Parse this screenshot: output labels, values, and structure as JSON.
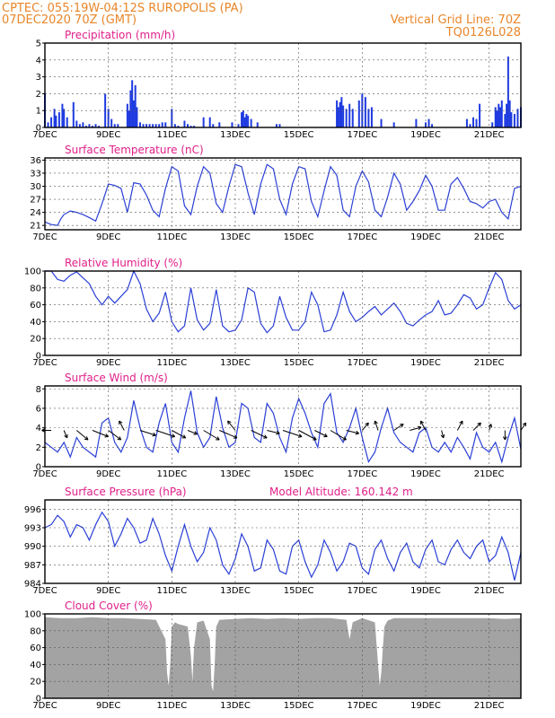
{
  "header": {
    "left_line1": "CPTEC:   055:19W-04:12S   RUROPOLIS (PA)",
    "left_line2": "07DEC2020 70Z (GMT)",
    "right_line1": "Vertical Grid Line: 70Z",
    "right_line2": "TQ0126L028"
  },
  "x_ticks": [
    "7DEC",
    "9DEC",
    "11DEC",
    "13DEC",
    "15DEC",
    "17DEC",
    "19DEC",
    "21DEC"
  ],
  "colors": {
    "header": "#e8862a",
    "title": "#e0208a",
    "series": "#2a3fd6",
    "bars": "#1f3be0",
    "cloud": "#a3a3a3"
  },
  "chart_data": [
    {
      "type": "bar",
      "title": "Precipitation (mm/h)",
      "ylim": [
        0,
        5
      ],
      "yticks": [
        0,
        1,
        2,
        3,
        4,
        5
      ],
      "xlim": [
        7,
        22
      ],
      "note": "day-of-December positions",
      "x": [
        7.0,
        7.1,
        7.2,
        7.3,
        7.35,
        7.45,
        7.55,
        7.6,
        7.7,
        7.9,
        8.0,
        8.1,
        8.2,
        8.3,
        8.4,
        8.5,
        8.6,
        8.7,
        8.9,
        9.0,
        9.1,
        9.2,
        9.3,
        9.6,
        9.65,
        9.7,
        9.75,
        9.8,
        9.85,
        9.9,
        10.0,
        10.1,
        10.2,
        10.3,
        10.4,
        10.5,
        10.6,
        10.7,
        10.8,
        11.0,
        11.1,
        11.2,
        11.4,
        11.5,
        11.6,
        11.7,
        12.0,
        12.2,
        12.3,
        12.5,
        12.9,
        13.1,
        13.2,
        13.25,
        13.3,
        13.35,
        13.4,
        13.5,
        13.7,
        14.3,
        14.4,
        16.2,
        16.25,
        16.3,
        16.35,
        16.4,
        16.5,
        16.6,
        16.7,
        16.9,
        17.0,
        17.1,
        17.2,
        17.3,
        17.6,
        18.0,
        18.7,
        19.0,
        19.1,
        19.2,
        20.3,
        20.4,
        20.5,
        20.6,
        20.7,
        21.1,
        21.2,
        21.25,
        21.3,
        21.35,
        21.4,
        21.5,
        21.55,
        21.6,
        21.65,
        21.7,
        21.8,
        21.9,
        22.0
      ],
      "values": [
        2.0,
        0.3,
        0.6,
        1.1,
        0.7,
        0.9,
        1.4,
        1.1,
        0.6,
        1.5,
        0.4,
        0.2,
        0.3,
        0.1,
        0.2,
        0.1,
        0.2,
        0.1,
        2.0,
        1.1,
        0.5,
        0.2,
        0.2,
        1.4,
        1.0,
        2.2,
        2.8,
        1.6,
        2.5,
        1.2,
        0.3,
        0.2,
        0.2,
        0.2,
        0.2,
        0.2,
        0.2,
        0.3,
        0.3,
        1.1,
        0.2,
        0.1,
        0.4,
        0.2,
        0.1,
        0.1,
        0.6,
        0.6,
        0.2,
        0.3,
        0.3,
        0.2,
        0.9,
        1.0,
        0.6,
        0.8,
        0.7,
        0.5,
        0.3,
        0.2,
        0.2,
        1.6,
        1.2,
        1.5,
        1.8,
        1.3,
        1.1,
        1.4,
        1.1,
        1.6,
        2.0,
        1.8,
        1.1,
        1.2,
        0.5,
        0.3,
        0.5,
        0.3,
        0.5,
        0.2,
        0.5,
        0.2,
        0.6,
        0.5,
        1.4,
        0.3,
        1.2,
        1.0,
        1.4,
        1.2,
        1.6,
        0.8,
        1.4,
        4.2,
        1.6,
        0.9,
        0.8,
        1.1,
        1.2
      ]
    },
    {
      "type": "line",
      "title": "Surface Temperature (nC)",
      "ylim": [
        20,
        36.5
      ],
      "yticks": [
        21,
        24,
        27,
        30,
        33,
        36
      ],
      "xlim": [
        7,
        22
      ],
      "x": [
        7.0,
        7.2,
        7.4,
        7.5,
        7.6,
        7.8,
        8.0,
        8.2,
        8.4,
        8.6,
        8.8,
        9.0,
        9.2,
        9.4,
        9.6,
        9.8,
        10.0,
        10.2,
        10.4,
        10.6,
        10.8,
        11.0,
        11.2,
        11.4,
        11.6,
        11.8,
        12.0,
        12.2,
        12.4,
        12.6,
        12.8,
        13.0,
        13.2,
        13.4,
        13.6,
        13.8,
        14.0,
        14.2,
        14.4,
        14.6,
        14.8,
        15.0,
        15.2,
        15.4,
        15.6,
        15.8,
        16.0,
        16.2,
        16.4,
        16.6,
        16.8,
        17.0,
        17.2,
        17.4,
        17.6,
        17.8,
        18.0,
        18.2,
        18.4,
        18.6,
        18.8,
        19.0,
        19.2,
        19.4,
        19.6,
        19.8,
        20.0,
        20.2,
        20.4,
        20.6,
        20.8,
        21.0,
        21.2,
        21.4,
        21.6,
        21.8,
        22.0
      ],
      "values": [
        21.8,
        21.2,
        21.0,
        22.5,
        23.5,
        24.3,
        24.0,
        23.5,
        22.8,
        22.0,
        26.0,
        30.5,
        30.2,
        29.5,
        24.0,
        30.8,
        30.5,
        28.0,
        24.5,
        23.0,
        29.5,
        34.5,
        33.5,
        25.5,
        23.5,
        30.0,
        34.5,
        33.0,
        26.0,
        24.0,
        30.0,
        35.0,
        34.5,
        28.5,
        23.5,
        30.5,
        35.0,
        34.0,
        27.0,
        23.5,
        30.5,
        34.5,
        34.0,
        26.5,
        23.0,
        29.0,
        34.5,
        32.5,
        24.5,
        23.0,
        30.0,
        33.5,
        31.0,
        24.5,
        23.0,
        27.5,
        33.0,
        30.5,
        24.5,
        26.5,
        29.0,
        32.5,
        30.0,
        24.5,
        24.5,
        30.5,
        32.0,
        29.5,
        26.5,
        26.0,
        25.0,
        26.5,
        27.0,
        24.0,
        22.5,
        29.5,
        30.0
      ]
    },
    {
      "type": "line",
      "title": "Relative Humidity (%)",
      "ylim": [
        0,
        100
      ],
      "yticks": [
        0,
        20,
        40,
        60,
        80,
        100
      ],
      "xlim": [
        7,
        22
      ],
      "x": [
        7.0,
        7.2,
        7.4,
        7.6,
        7.8,
        8.0,
        8.2,
        8.4,
        8.6,
        8.8,
        9.0,
        9.2,
        9.4,
        9.6,
        9.8,
        10.0,
        10.2,
        10.4,
        10.6,
        10.8,
        11.0,
        11.2,
        11.4,
        11.6,
        11.8,
        12.0,
        12.2,
        12.4,
        12.6,
        12.8,
        13.0,
        13.2,
        13.4,
        13.6,
        13.8,
        14.0,
        14.2,
        14.4,
        14.6,
        14.8,
        15.0,
        15.2,
        15.4,
        15.6,
        15.8,
        16.0,
        16.2,
        16.4,
        16.6,
        16.8,
        17.0,
        17.2,
        17.4,
        17.6,
        17.8,
        18.0,
        18.2,
        18.4,
        18.6,
        18.8,
        19.0,
        19.2,
        19.4,
        19.6,
        19.8,
        20.0,
        20.2,
        20.4,
        20.6,
        20.8,
        21.0,
        21.2,
        21.4,
        21.6,
        21.8,
        22.0
      ],
      "values": [
        100,
        100,
        90,
        88,
        95,
        99,
        92,
        85,
        70,
        60,
        70,
        62,
        70,
        78,
        100,
        85,
        55,
        40,
        50,
        75,
        40,
        28,
        35,
        80,
        42,
        30,
        38,
        78,
        35,
        28,
        30,
        42,
        80,
        75,
        38,
        27,
        35,
        70,
        45,
        30,
        30,
        40,
        75,
        60,
        28,
        30,
        48,
        75,
        52,
        40,
        45,
        52,
        58,
        48,
        55,
        62,
        52,
        38,
        35,
        42,
        48,
        52,
        65,
        48,
        50,
        60,
        72,
        68,
        55,
        60,
        80,
        98,
        90,
        65,
        55,
        60
      ]
    },
    {
      "type": "line",
      "title": "Surface Wind (m/s)",
      "ylim": [
        0,
        8.3
      ],
      "yticks": [
        0,
        2,
        4,
        6,
        8
      ],
      "xlim": [
        7,
        22
      ],
      "x": [
        7.0,
        7.2,
        7.4,
        7.6,
        7.8,
        8.0,
        8.2,
        8.4,
        8.6,
        8.8,
        9.0,
        9.2,
        9.4,
        9.6,
        9.8,
        10.0,
        10.2,
        10.4,
        10.6,
        10.8,
        11.0,
        11.2,
        11.4,
        11.6,
        11.8,
        12.0,
        12.2,
        12.4,
        12.6,
        12.8,
        13.0,
        13.2,
        13.4,
        13.6,
        13.8,
        14.0,
        14.2,
        14.4,
        14.6,
        14.8,
        15.0,
        15.2,
        15.4,
        15.6,
        15.8,
        16.0,
        16.2,
        16.4,
        16.6,
        16.8,
        17.0,
        17.2,
        17.4,
        17.6,
        17.8,
        18.0,
        18.2,
        18.4,
        18.6,
        18.8,
        19.0,
        19.2,
        19.4,
        19.6,
        19.8,
        20.0,
        20.2,
        20.4,
        20.6,
        20.8,
        21.0,
        21.2,
        21.4,
        21.6,
        21.8,
        22.0
      ],
      "values": [
        2.5,
        2.0,
        1.5,
        2.5,
        1.0,
        3.0,
        2.0,
        1.5,
        1.0,
        4.5,
        5.0,
        2.5,
        1.5,
        3.0,
        6.8,
        4.0,
        2.0,
        1.5,
        4.5,
        6.5,
        2.5,
        1.5,
        5.0,
        7.8,
        3.5,
        2.0,
        3.0,
        7.2,
        4.0,
        2.0,
        2.5,
        6.5,
        6.0,
        3.0,
        2.5,
        6.5,
        5.5,
        3.0,
        1.5,
        5.0,
        7.0,
        5.5,
        3.5,
        2.0,
        6.5,
        7.5,
        3.5,
        2.5,
        4.0,
        6.0,
        3.0,
        0.5,
        1.5,
        4.0,
        6.0,
        3.5,
        2.5,
        2.0,
        1.5,
        3.5,
        4.0,
        2.0,
        1.5,
        2.5,
        1.5,
        3.0,
        2.0,
        0.8,
        3.5,
        2.0,
        1.5,
        2.5,
        0.5,
        3.0,
        5.0,
        1.8
      ],
      "arrows": {
        "x": [
          7.2,
          7.6,
          8.0,
          8.5,
          9.0,
          9.5,
          10.0,
          10.5,
          11.0,
          11.5,
          12.0,
          12.5,
          13.0,
          13.5,
          14.0,
          14.5,
          15.0,
          15.5,
          16.0,
          16.5,
          17.0,
          17.5,
          18.0,
          18.5,
          19.0,
          19.5,
          20.0,
          20.5,
          21.0,
          21.5,
          22.0
        ],
        "u": [
          -1.5,
          0.5,
          1.8,
          2.5,
          2.0,
          -0.8,
          2.5,
          3.0,
          2.2,
          1.5,
          2.5,
          2.8,
          -1.2,
          2.5,
          2.0,
          3.0,
          2.8,
          2.0,
          2.5,
          2.0,
          1.0,
          -0.5,
          1.5,
          1.8,
          -0.8,
          0.3,
          0.8,
          1.2,
          0.3,
          0.0,
          0.8
        ],
        "v": [
          0.0,
          -1.2,
          -1.5,
          -1.0,
          -1.5,
          1.5,
          -0.8,
          -1.0,
          -1.2,
          -0.6,
          -1.5,
          -1.2,
          1.5,
          -1.2,
          -0.5,
          -1.0,
          -1.5,
          -1.0,
          -1.5,
          -0.5,
          1.2,
          1.5,
          1.0,
          0.5,
          1.5,
          -1.2,
          1.5,
          1.2,
          1.0,
          -1.5,
          1.2
        ]
      }
    },
    {
      "type": "line",
      "title": "Surface Pressure (hPa)",
      "annotation": "Model Altitude: 160.142  m",
      "ylim": [
        984,
        997.5
      ],
      "yticks": [
        984,
        987,
        990,
        993,
        996
      ],
      "xlim": [
        7,
        22
      ],
      "x": [
        7.0,
        7.2,
        7.4,
        7.6,
        7.8,
        8.0,
        8.2,
        8.4,
        8.6,
        8.8,
        9.0,
        9.2,
        9.4,
        9.6,
        9.8,
        10.0,
        10.2,
        10.4,
        10.6,
        10.8,
        11.0,
        11.2,
        11.4,
        11.6,
        11.8,
        12.0,
        12.2,
        12.4,
        12.6,
        12.8,
        13.0,
        13.2,
        13.4,
        13.6,
        13.8,
        14.0,
        14.2,
        14.4,
        14.6,
        14.8,
        15.0,
        15.2,
        15.4,
        15.6,
        15.8,
        16.0,
        16.2,
        16.4,
        16.6,
        16.8,
        17.0,
        17.2,
        17.4,
        17.6,
        17.8,
        18.0,
        18.2,
        18.4,
        18.6,
        18.8,
        19.0,
        19.2,
        19.4,
        19.6,
        19.8,
        20.0,
        20.2,
        20.4,
        20.6,
        20.8,
        21.0,
        21.2,
        21.4,
        21.6,
        21.8,
        22.0
      ],
      "values": [
        993.0,
        993.5,
        995.0,
        994.0,
        991.5,
        993.5,
        993.0,
        991.0,
        993.5,
        995.5,
        994.0,
        990.0,
        992.0,
        994.5,
        993.0,
        990.5,
        991.0,
        994.5,
        992.0,
        988.5,
        986.0,
        990.0,
        993.5,
        990.0,
        987.5,
        989.0,
        993.0,
        991.0,
        987.0,
        985.5,
        988.0,
        992.0,
        990.0,
        986.0,
        986.5,
        991.0,
        989.5,
        986.0,
        985.5,
        990.0,
        991.0,
        987.5,
        985.0,
        987.0,
        991.0,
        989.0,
        986.0,
        987.5,
        990.5,
        990.0,
        986.5,
        985.5,
        989.5,
        991.0,
        988.0,
        986.0,
        989.0,
        990.5,
        987.5,
        986.5,
        989.5,
        991.0,
        987.5,
        987.0,
        989.5,
        991.0,
        989.0,
        988.0,
        990.0,
        991.0,
        987.5,
        988.5,
        991.5,
        989.0,
        984.5,
        989.0
      ]
    },
    {
      "type": "area",
      "title": "Cloud Cover (%)",
      "ylim": [
        0,
        100
      ],
      "yticks": [
        0,
        20,
        40,
        60,
        80,
        100
      ],
      "xlim": [
        7,
        22
      ],
      "x": [
        7.0,
        7.5,
        8.0,
        8.5,
        9.0,
        9.5,
        10.0,
        10.5,
        10.8,
        10.85,
        10.9,
        10.95,
        11.0,
        11.1,
        11.2,
        11.5,
        11.6,
        11.65,
        11.7,
        11.8,
        12.0,
        12.2,
        12.25,
        12.3,
        12.35,
        12.4,
        12.5,
        13.0,
        13.5,
        14.0,
        14.5,
        15.0,
        15.5,
        16.0,
        16.5,
        16.6,
        16.7,
        17.0,
        17.4,
        17.5,
        17.55,
        17.6,
        17.65,
        17.7,
        17.8,
        18.0,
        18.5,
        19.0,
        19.5,
        20.0,
        20.5,
        21.0,
        21.5,
        22.0
      ],
      "values": [
        96,
        95,
        95,
        96,
        95,
        95,
        94,
        93,
        70,
        30,
        15,
        40,
        85,
        90,
        88,
        85,
        50,
        20,
        60,
        90,
        92,
        70,
        15,
        8,
        40,
        85,
        93,
        94,
        95,
        94,
        95,
        94,
        95,
        95,
        93,
        70,
        90,
        95,
        90,
        40,
        15,
        30,
        60,
        85,
        92,
        95,
        95,
        95,
        95,
        95,
        95,
        95,
        94,
        95
      ]
    }
  ]
}
